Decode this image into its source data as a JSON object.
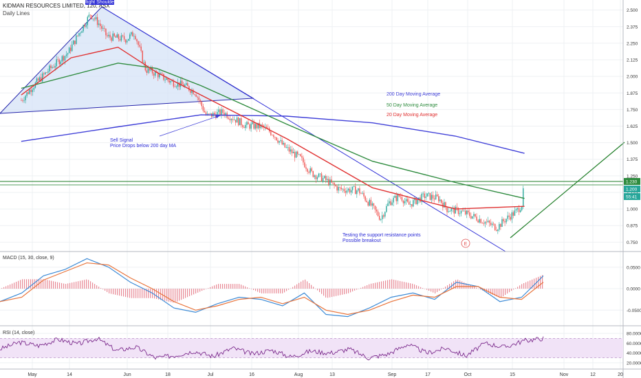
{
  "header": {
    "title": "KIDMAN RESOURCES LIMITED, 120, ASX",
    "subtitle": "Daily Lines"
  },
  "colors": {
    "up": "#26a69a",
    "down": "#ef5350",
    "ma200": "#3f3fd8",
    "ma50": "#2e8b3e",
    "ma20": "#e03030",
    "annotation_blue": "#2b2bd6",
    "macd_line": "#3d8bd6",
    "signal_line": "#e8733a",
    "rsi_line": "#7b2a8c",
    "rsi_band": "#f1e3f7",
    "support_line": "#1e7d26",
    "price_badge": "#26a69a",
    "grid": "#eef0f3"
  },
  "chart_data": [
    {
      "type": "line",
      "pane": "price",
      "ylim": [
        0.7,
        2.55
      ],
      "yticks": [
        "2.500",
        "2.375",
        "2.250",
        "2.125",
        "2.000",
        "1.875",
        "1.750",
        "1.625",
        "1.500",
        "1.375",
        "1.250",
        "1.125",
        "1.000",
        "0.875",
        "0.750"
      ],
      "ytick_values": [
        2.5,
        2.375,
        2.25,
        2.125,
        2.0,
        1.875,
        1.75,
        1.625,
        1.5,
        1.375,
        1.25,
        1.125,
        1.0,
        0.875,
        0.75
      ],
      "x_ticks": [
        "May",
        "14",
        "Jun",
        "18",
        "Jul",
        "16",
        "Aug",
        "13",
        "Sep",
        "17",
        "Oct",
        "15",
        "Nov",
        "12",
        "20"
      ],
      "price_path": [
        [
          "Apr 27",
          1.82
        ],
        [
          "May 1",
          1.92
        ],
        [
          "May 7",
          2.05
        ],
        [
          "May 14",
          2.18
        ],
        [
          "May 18",
          2.33
        ],
        [
          "May 22",
          2.47
        ],
        [
          "May 25",
          2.4
        ],
        [
          "May 28",
          2.3
        ],
        [
          "Jun 4",
          2.28
        ],
        [
          "Jun 7",
          2.33
        ],
        [
          "Jun 11",
          2.05
        ],
        [
          "Jun 15",
          2.02
        ],
        [
          "Jun 20",
          1.96
        ],
        [
          "Jun 25",
          1.93
        ],
        [
          "Jun 29",
          1.88
        ],
        [
          "Jul 3",
          1.7
        ],
        [
          "Jul 9",
          1.73
        ],
        [
          "Jul 13",
          1.68
        ],
        [
          "Jul 17",
          1.63
        ],
        [
          "Jul 23",
          1.62
        ],
        [
          "Jul 27",
          1.57
        ],
        [
          "Jul 31",
          1.47
        ],
        [
          "Aug 6",
          1.38
        ],
        [
          "Aug 10",
          1.27
        ],
        [
          "Aug 15",
          1.22
        ],
        [
          "Aug 20",
          1.15
        ],
        [
          "Aug 27",
          1.14
        ],
        [
          "Aug 31",
          1.04
        ],
        [
          "Sep 4",
          0.93
        ],
        [
          "Sep 7",
          1.05
        ],
        [
          "Sep 11",
          1.1
        ],
        [
          "Sep 14",
          1.03
        ],
        [
          "Sep 20",
          1.1
        ],
        [
          "Sep 25",
          1.08
        ],
        [
          "Sep 28",
          1.0
        ],
        [
          "Oct 3",
          0.98
        ],
        [
          "Oct 8",
          0.94
        ],
        [
          "Oct 12",
          0.9
        ],
        [
          "Oct 16",
          0.86
        ],
        [
          "Oct 19",
          0.92
        ],
        [
          "Oct 23",
          0.98
        ],
        [
          "Oct 25",
          1.03
        ],
        [
          "Oct 26",
          1.21
        ]
      ],
      "series": [
        {
          "name": "200 Day Moving Average",
          "values": [
            [
              "Apr 27",
              1.51
            ],
            [
              "Jun 1",
              1.62
            ],
            [
              "Jul 1",
              1.71
            ],
            [
              "Aug 1",
              1.7
            ],
            [
              "Sep 1",
              1.65
            ],
            [
              "Oct 1",
              1.55
            ],
            [
              "Oct 26",
              1.42
            ]
          ]
        },
        {
          "name": "50 Day Moving Average",
          "values": [
            [
              "Apr 27",
              1.91
            ],
            [
              "Jun 1",
              2.1
            ],
            [
              "Jun 15",
              2.06
            ],
            [
              "Jul 1",
              1.93
            ],
            [
              "Aug 1",
              1.64
            ],
            [
              "Sep 1",
              1.36
            ],
            [
              "Oct 1",
              1.2
            ],
            [
              "Oct 26",
              1.08
            ]
          ]
        },
        {
          "name": "20 Day Moving Average",
          "values": [
            [
              "Apr 27",
              1.86
            ],
            [
              "May 15",
              2.14
            ],
            [
              "Jun 1",
              2.22
            ],
            [
              "Jun 15",
              2.03
            ],
            [
              "Jul 1",
              1.86
            ],
            [
              "Aug 1",
              1.53
            ],
            [
              "Sep 1",
              1.16
            ],
            [
              "Oct 1",
              1.0
            ],
            [
              "Oct 26",
              1.02
            ]
          ]
        }
      ],
      "price_labels": [
        {
          "value": 1.23,
          "text": "1.230",
          "color": "#2e8b3e"
        },
        {
          "value": 1.2,
          "text": "1.200",
          "color": "#26a69a"
        },
        {
          "value": 1.12,
          "text": "55:41",
          "color": "#26a69a"
        }
      ],
      "support_level": 1.23,
      "annotations": {
        "right_shoulder": "Right Shoulder",
        "sell_signal": "Sell Signal",
        "sell_signal_detail": "Price Drops below 200 day MA",
        "testing": "Testing the support resistance points",
        "testing_detail": "Possible breakout",
        "earnings_marker": "E"
      }
    },
    {
      "type": "line",
      "pane": "macd",
      "title": "MACD (15, 30, close, 9)",
      "ylim": [
        -0.08,
        0.08
      ],
      "yticks": [
        "0.0500",
        "0.0000",
        "-0.0500"
      ],
      "ytick_values": [
        0.05,
        0.0,
        -0.05
      ],
      "series": [
        {
          "name": "MACD",
          "values": [
            -0.03,
            -0.01,
            0.03,
            0.045,
            0.07,
            0.05,
            0.015,
            -0.01,
            -0.045,
            -0.055,
            -0.035,
            -0.02,
            -0.025,
            -0.04,
            -0.01,
            -0.06,
            -0.065,
            -0.045,
            -0.02,
            -0.01,
            -0.025,
            0.015,
            0.005,
            -0.03,
            -0.02,
            0.03
          ]
        },
        {
          "name": "Signal",
          "values": [
            -0.03,
            -0.02,
            0.02,
            0.04,
            0.06,
            0.055,
            0.025,
            0.0,
            -0.03,
            -0.05,
            -0.04,
            -0.025,
            -0.02,
            -0.035,
            -0.02,
            -0.05,
            -0.06,
            -0.05,
            -0.03,
            -0.015,
            -0.02,
            0.005,
            0.005,
            -0.02,
            -0.025,
            0.015
          ]
        }
      ]
    },
    {
      "type": "line",
      "pane": "rsi",
      "title": "RSI (14, close)",
      "ylim": [
        10,
        90
      ],
      "yticks": [
        "80.0000",
        "60.0000",
        "40.0000",
        "20.0000"
      ],
      "ytick_values": [
        80,
        60,
        40,
        20
      ],
      "band": [
        30,
        70
      ],
      "series": [
        {
          "name": "RSI",
          "values": [
            48,
            62,
            55,
            68,
            58,
            70,
            45,
            52,
            30,
            35,
            44,
            33,
            50,
            38,
            46,
            32,
            44,
            40,
            48,
            30,
            38,
            58,
            40,
            50,
            34,
            60,
            52,
            65,
            70
          ]
        }
      ]
    }
  ]
}
